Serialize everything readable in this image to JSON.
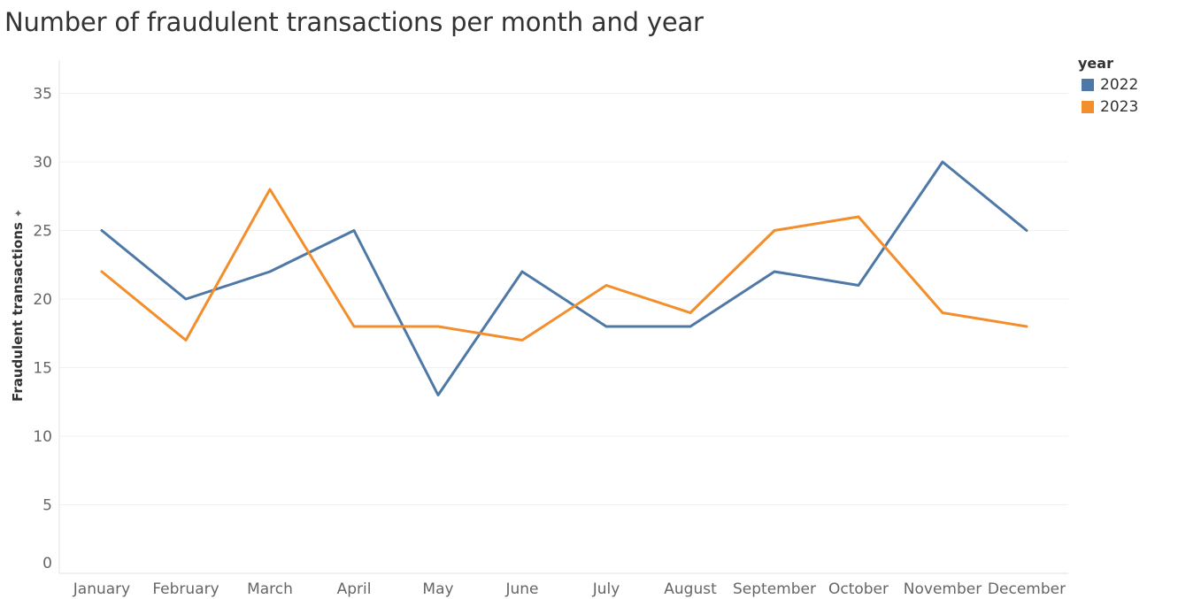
{
  "title": "Number of fraudulent transactions per month and year",
  "chart_data": {
    "type": "line",
    "title": "Number of fraudulent transactions per month and year",
    "xlabel": "",
    "ylabel": "Fraudulent transactions",
    "ylim": [
      0,
      37
    ],
    "yticks": [
      0,
      5,
      10,
      15,
      20,
      25,
      30,
      35
    ],
    "grid": true,
    "legend_title": "year",
    "legend_position": "top-right",
    "categories": [
      "January",
      "February",
      "March",
      "April",
      "May",
      "June",
      "July",
      "August",
      "September",
      "October",
      "November",
      "December"
    ],
    "series": [
      {
        "name": "2022",
        "color": "#4e79a7",
        "values": [
          25,
          20,
          22,
          25,
          13,
          22,
          18,
          18,
          22,
          21,
          30,
          25
        ]
      },
      {
        "name": "2023",
        "color": "#f28e2b",
        "values": [
          22,
          17,
          28,
          18,
          18,
          17,
          21,
          19,
          25,
          26,
          19,
          18
        ]
      }
    ]
  }
}
